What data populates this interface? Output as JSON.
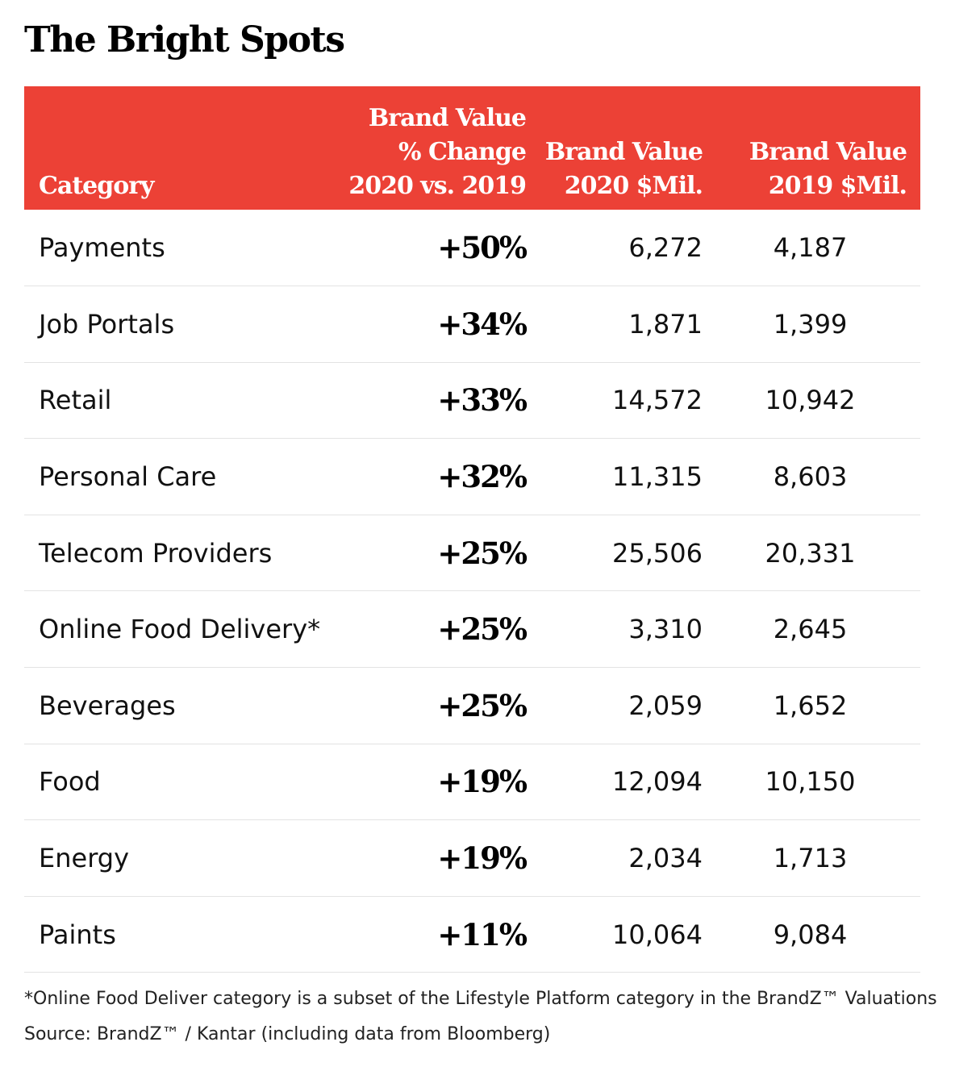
{
  "title": "The Bright Spots",
  "colors": {
    "header_bg": "#ec4136",
    "header_text": "#ffffff",
    "row_divider": "#e3e3e3"
  },
  "chart_data": {
    "type": "table",
    "title": "The Bright Spots",
    "columns": [
      {
        "lines": [
          "Category"
        ]
      },
      {
        "lines": [
          "Brand Value",
          "% Change",
          "2020 vs. 2019"
        ]
      },
      {
        "lines": [
          "Brand Value",
          "2020 $Mil."
        ]
      },
      {
        "lines": [
          "Brand Value",
          "2019 $Mil."
        ]
      }
    ],
    "rows": [
      {
        "category": "Payments",
        "change": "+50%",
        "value_2020": "6,272",
        "value_2019": "4,187"
      },
      {
        "category": "Job Portals",
        "change": "+34%",
        "value_2020": "1,871",
        "value_2019": "1,399"
      },
      {
        "category": "Retail",
        "change": "+33%",
        "value_2020": "14,572",
        "value_2019": "10,942"
      },
      {
        "category": "Personal Care",
        "change": "+32%",
        "value_2020": "11,315",
        "value_2019": "8,603"
      },
      {
        "category": "Telecom Providers",
        "change": "+25%",
        "value_2020": "25,506",
        "value_2019": "20,331"
      },
      {
        "category": "Online Food Delivery*",
        "change": "+25%",
        "value_2020": "3,310",
        "value_2019": "2,645"
      },
      {
        "category": "Beverages",
        "change": "+25%",
        "value_2020": "2,059",
        "value_2019": "1,652"
      },
      {
        "category": "Food",
        "change": "+19%",
        "value_2020": "12,094",
        "value_2019": "10,150"
      },
      {
        "category": "Energy",
        "change": "+19%",
        "value_2020": "2,034",
        "value_2019": "1,713"
      },
      {
        "category": "Paints",
        "change": "+11%",
        "value_2020": "10,064",
        "value_2019": "9,084"
      }
    ]
  },
  "footnote": "*Online Food Deliver category is a subset of the Lifestyle Platform category in the BrandZ™ Valuations",
  "source": "Source: BrandZ™ / Kantar (including data from Bloomberg)"
}
